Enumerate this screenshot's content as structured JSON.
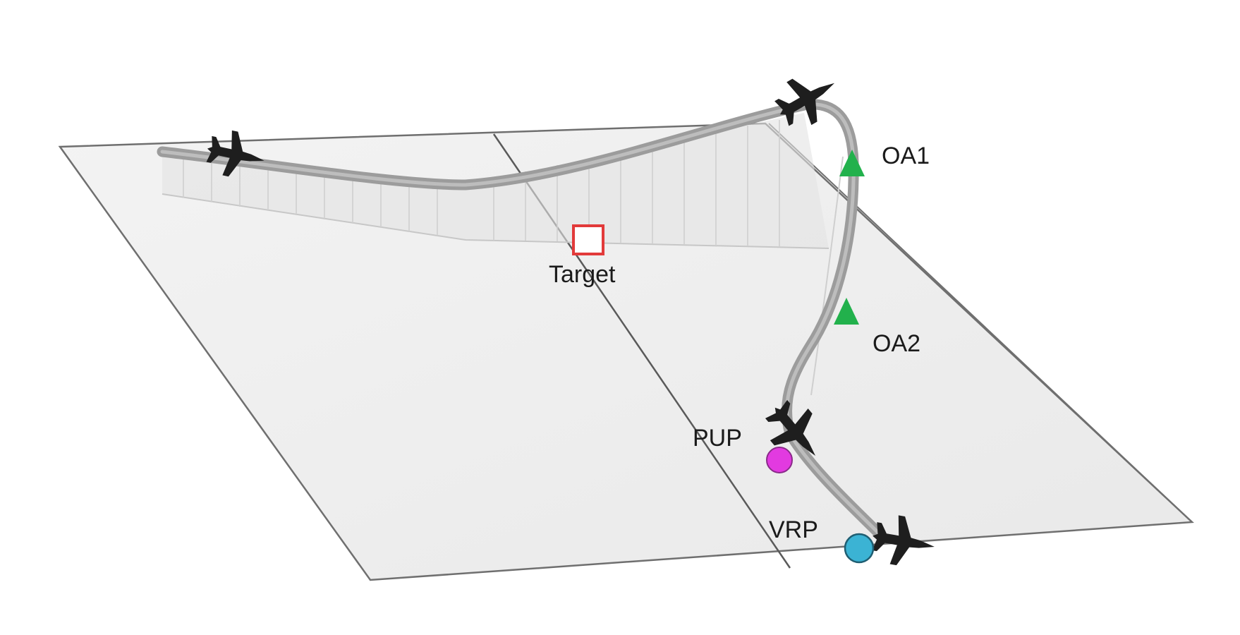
{
  "labels": {
    "target": "Target",
    "oa1": "OA1",
    "oa2": "OA2",
    "pup": "PUP",
    "vrp": "VRP"
  },
  "icons": {
    "aircraft": "aircraft-icon",
    "target_marker": "square-marker-icon",
    "offset_aimpoint": "triangle-marker-icon",
    "pull_up_point": "circle-marker-icon",
    "visual_reference_point": "circle-marker-icon"
  },
  "colors": {
    "ground_plane": "#f1f1f1",
    "ground_edge": "#6f6f6f",
    "flight_path": "#9c9c9c",
    "target": "#e23a3a",
    "offset_aimpoint": "#22b14c",
    "pull_up_point": "#e23ae0",
    "visual_reference_point": "#3bb3d4",
    "aircraft": "#1e1e1e"
  }
}
